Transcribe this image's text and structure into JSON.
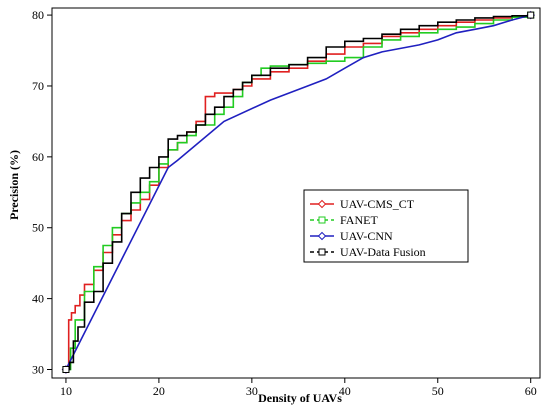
{
  "chart_data": {
    "type": "line",
    "title": "",
    "xlabel": "Density of UAVs",
    "ylabel": "Precision (%)",
    "xlim": [
      8.5,
      61
    ],
    "ylim": [
      28.8,
      81
    ],
    "xticks": [
      10,
      20,
      30,
      40,
      50,
      60
    ],
    "yticks": [
      30,
      40,
      50,
      60,
      70,
      80
    ],
    "grid": false,
    "legend_position": "center-right",
    "series": [
      {
        "name": "UAV-CMS_CT",
        "color": "#e02020",
        "marker": "diamond",
        "x": [
          10,
          10.3,
          10.6,
          11,
          11.5,
          12,
          13,
          14,
          15,
          16,
          17,
          18,
          19,
          20,
          21,
          22,
          23,
          24,
          25,
          26,
          27,
          28,
          29,
          30,
          32,
          34,
          36,
          38,
          40,
          42,
          44,
          46,
          48,
          50,
          52,
          54,
          56,
          58,
          60
        ],
        "y": [
          30,
          37,
          38,
          39,
          40.5,
          42,
          44,
          46.5,
          49,
          51,
          52.5,
          54,
          56,
          58.5,
          61,
          62,
          63.5,
          65,
          68.5,
          69,
          69,
          69.5,
          70,
          71,
          72,
          72.5,
          73.5,
          74.5,
          75.5,
          76,
          77,
          77.5,
          78,
          78.5,
          79,
          79.3,
          79.6,
          79.8,
          80
        ]
      },
      {
        "name": "FANET",
        "color": "#22cc22",
        "marker": "square",
        "x": [
          10,
          10.5,
          11,
          12,
          13,
          14,
          15,
          16,
          17,
          18,
          19,
          20,
          21,
          22,
          23,
          24,
          25,
          26,
          27,
          28,
          29,
          30,
          31,
          32,
          34,
          36,
          38,
          40,
          42,
          44,
          46,
          48,
          50,
          52,
          54,
          56,
          58,
          60
        ],
        "y": [
          30,
          33,
          37,
          41,
          44.5,
          47.5,
          50,
          52,
          53.5,
          55,
          56.5,
          59,
          61,
          62,
          63,
          64.5,
          64.5,
          66,
          67,
          68.5,
          70.5,
          71.5,
          72.5,
          72.8,
          73,
          73.2,
          73.5,
          74,
          75.5,
          76.5,
          77,
          77.5,
          78,
          78.3,
          78.8,
          79.3,
          79.7,
          80
        ]
      },
      {
        "name": "UAV-CNN",
        "color": "#2020c0",
        "marker": "diamond",
        "x": [
          10,
          21,
          22,
          27,
          32,
          36,
          38,
          40,
          42,
          44,
          46,
          48,
          50,
          52,
          54,
          56,
          58,
          60
        ],
        "y": [
          30,
          58.5,
          59.5,
          65,
          68,
          70,
          71,
          72.5,
          74,
          74.8,
          75.3,
          75.8,
          76.5,
          77.5,
          78,
          78.5,
          79.3,
          80
        ]
      },
      {
        "name": "UAV-Data Fusion",
        "color": "#000000",
        "marker": "square",
        "x": [
          10,
          10.4,
          10.8,
          11.3,
          12,
          13,
          14,
          15,
          16,
          17,
          18,
          19,
          20,
          21,
          22,
          23,
          24,
          25,
          26,
          27,
          28,
          29,
          30,
          32,
          34,
          36,
          38,
          40,
          42,
          44,
          46,
          48,
          50,
          52,
          54,
          56,
          58,
          60
        ],
        "y": [
          30,
          31,
          34,
          36,
          39.5,
          41,
          45,
          48,
          52,
          55,
          57,
          58.5,
          60,
          62.5,
          63,
          63.5,
          64.5,
          66,
          67,
          68.5,
          69.5,
          70.5,
          71.5,
          72.5,
          73,
          74,
          75.5,
          76.3,
          76.7,
          77.3,
          78,
          78.5,
          79,
          79.3,
          79.6,
          79.8,
          79.9,
          80
        ]
      }
    ]
  }
}
